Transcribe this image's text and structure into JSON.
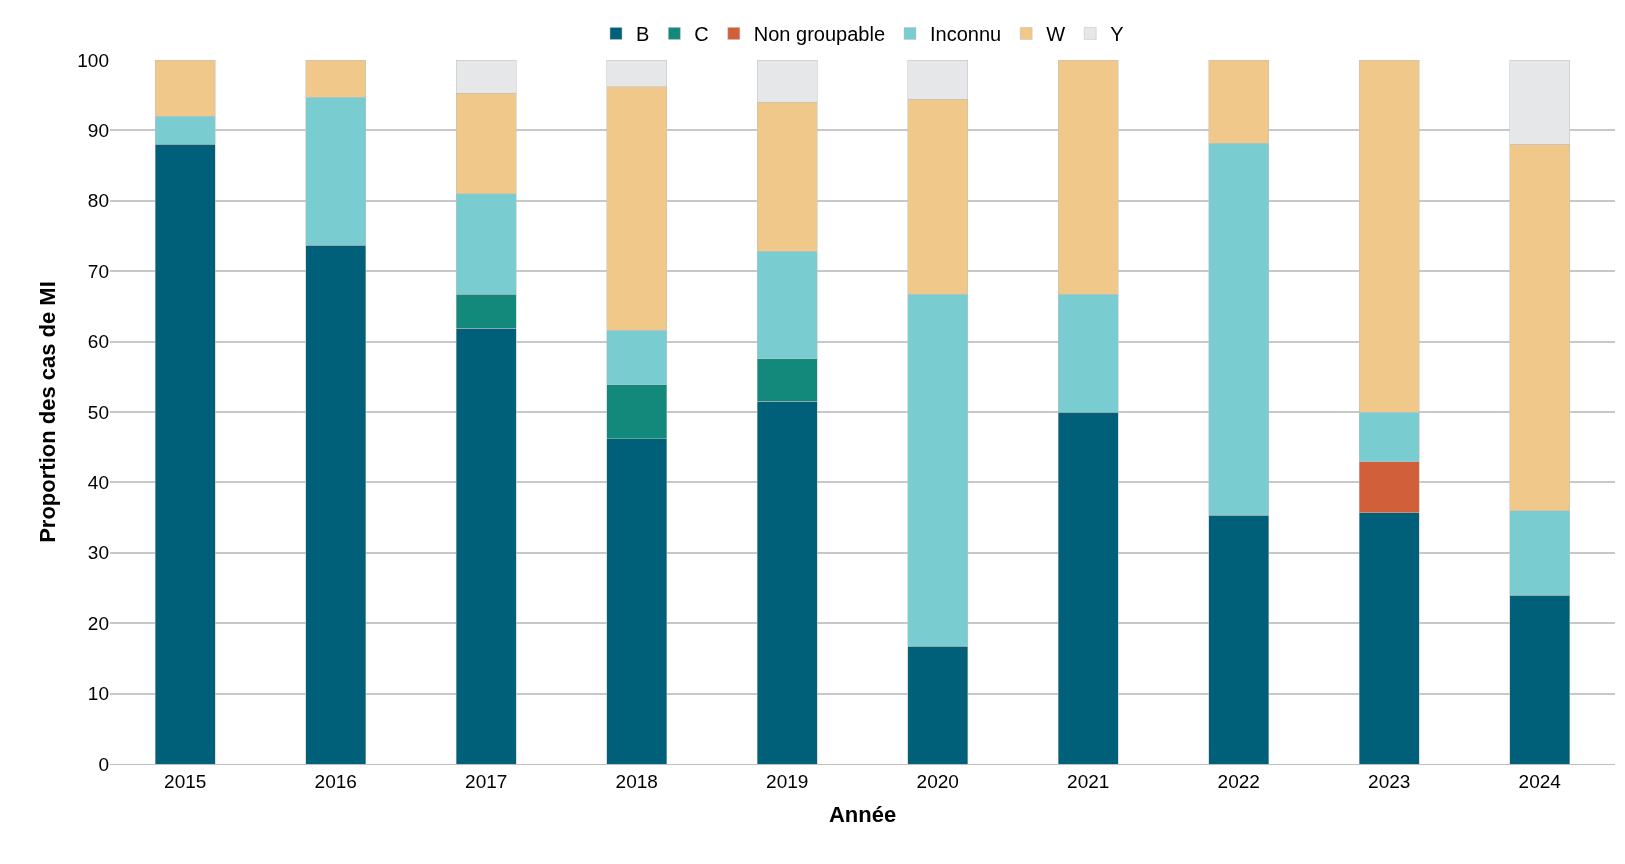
{
  "chart_data": {
    "type": "bar",
    "stacked": true,
    "xlabel": "Année",
    "ylabel": "Proportion des cas de MI",
    "categories": [
      "2015",
      "2016",
      "2017",
      "2018",
      "2019",
      "2020",
      "2021",
      "2022",
      "2023",
      "2024"
    ],
    "series": [
      {
        "name": "B",
        "color": "#00607a",
        "values": [
          88,
          73.7,
          61.9,
          46.2,
          51.5,
          16.7,
          50,
          35.3,
          35.7,
          24
        ]
      },
      {
        "name": "C",
        "color": "#12897a",
        "values": [
          null,
          null,
          4.8,
          7.7,
          6.1,
          null,
          null,
          null,
          null,
          null
        ]
      },
      {
        "name": "Non groupable",
        "color": "#d15f3a",
        "values": [
          null,
          null,
          null,
          null,
          null,
          null,
          null,
          null,
          7.2,
          null
        ]
      },
      {
        "name": "Inconnu",
        "color": "#79cdd1",
        "values": [
          4,
          21.0,
          14.3,
          7.7,
          15.2,
          50.0,
          16.7,
          52.9,
          7.1,
          12
        ]
      },
      {
        "name": "W",
        "color": "#f0c88a",
        "values": [
          8,
          5.3,
          14.3,
          34.6,
          21.2,
          27.7,
          33.3,
          11.8,
          50,
          52
        ]
      },
      {
        "name": "Y",
        "color": "#e6e7e8",
        "values": [
          null,
          null,
          4.7,
          3.8,
          6.0,
          5.6,
          null,
          null,
          null,
          12
        ]
      }
    ],
    "ylim": [
      0,
      100
    ],
    "yticks": [
      0,
      10,
      20,
      30,
      40,
      50,
      60,
      70,
      80,
      90,
      100
    ],
    "grid": "y",
    "legend": "top"
  }
}
